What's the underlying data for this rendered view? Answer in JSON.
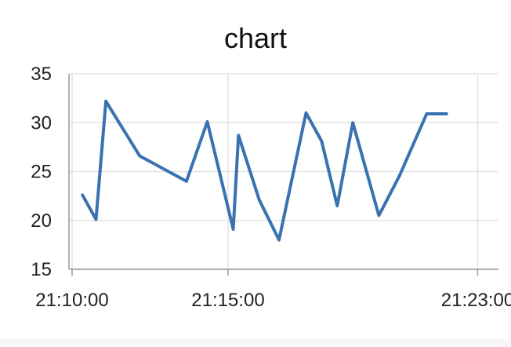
{
  "title": "chart",
  "chart_data": {
    "type": "line",
    "title": "chart",
    "xlabel": "",
    "ylabel": "",
    "ylim": [
      15,
      35
    ],
    "yticks": [
      15,
      20,
      25,
      30,
      35
    ],
    "xlim": [
      "21:09:54",
      "21:23:40"
    ],
    "xticks": [
      "21:10:00",
      "21:15:00",
      "21:23:00"
    ],
    "grid": true,
    "line_color": "#3a72b0",
    "series": [
      {
        "x": [
          "21:10:20",
          "21:10:46",
          "21:11:05",
          "21:12:10",
          "21:13:40",
          "21:14:20",
          "21:15:10",
          "21:15:20",
          "21:16:00",
          "21:16:38",
          "21:17:30",
          "21:18:00",
          "21:18:30",
          "21:19:00",
          "21:19:50",
          "21:20:30",
          "21:21:22",
          "21:21:44",
          "21:22:00"
        ],
        "y": [
          22.6,
          20.1,
          32.2,
          26.6,
          24.0,
          30.1,
          19.1,
          28.7,
          22.1,
          18.0,
          31.0,
          28.1,
          21.5,
          30.0,
          20.5,
          24.6,
          30.9,
          30.9,
          30.9
        ]
      }
    ]
  }
}
